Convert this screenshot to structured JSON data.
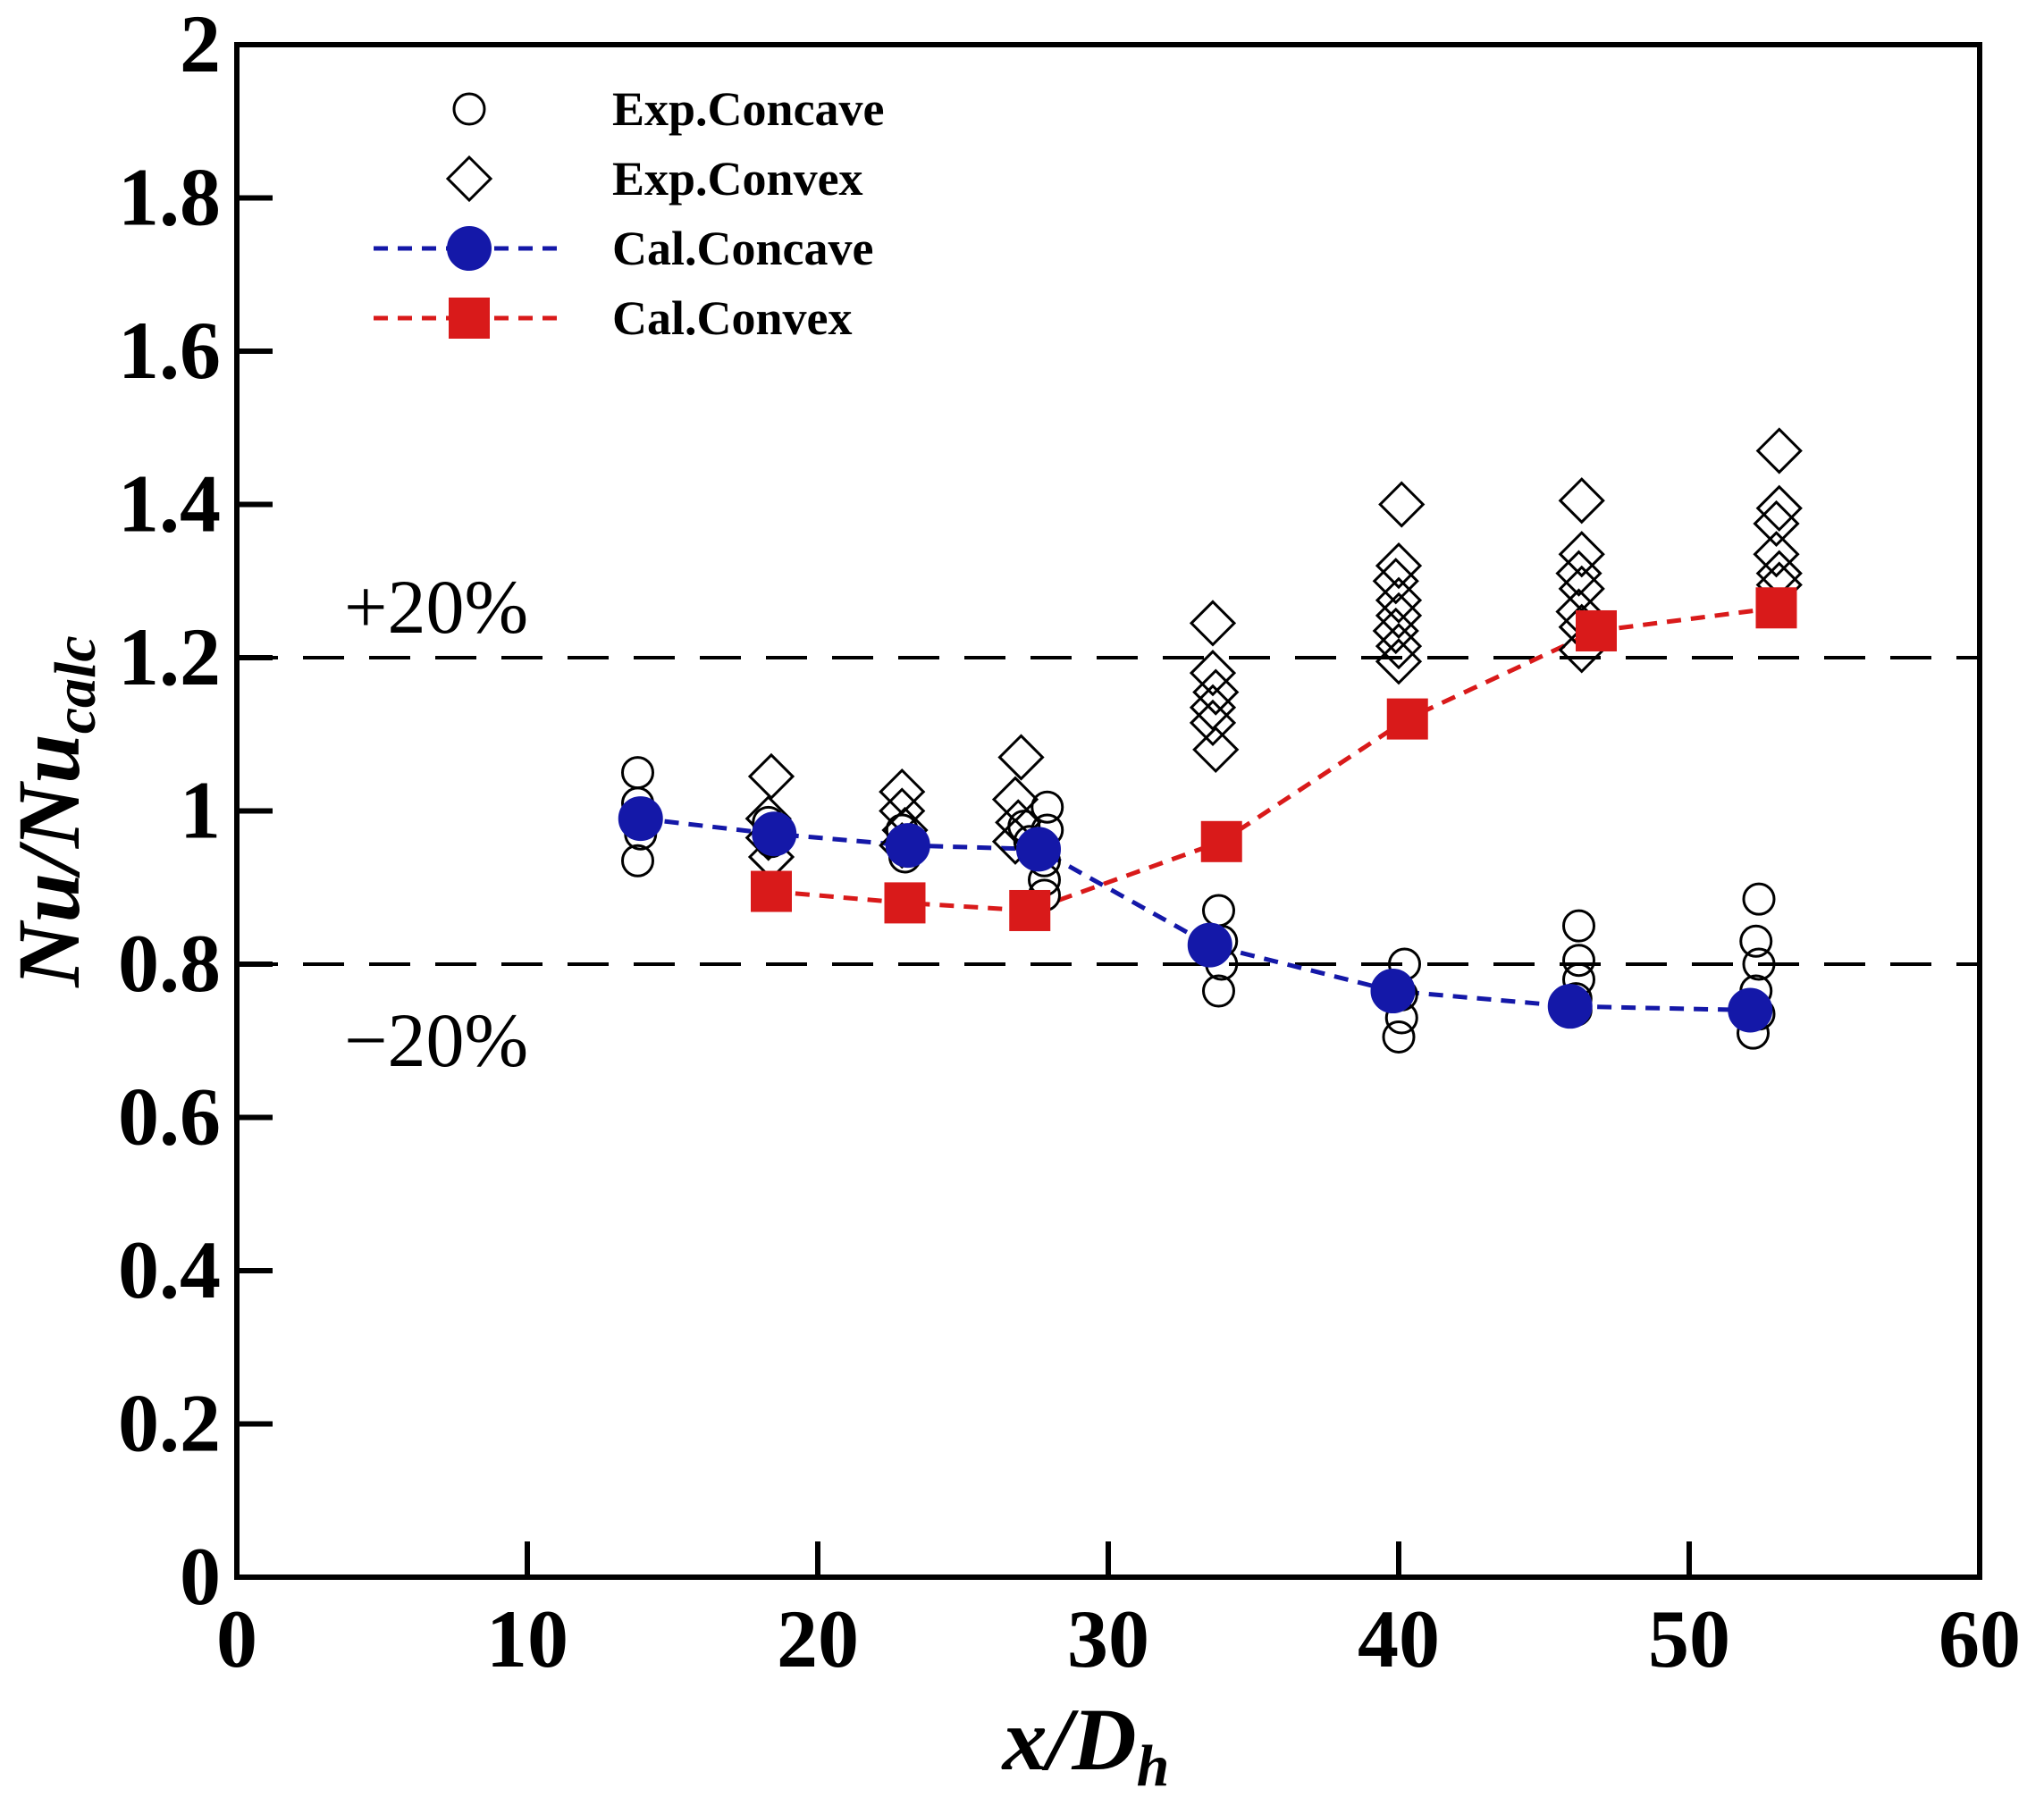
{
  "chart_data": {
    "type": "scatter",
    "title": "",
    "xlabel": {
      "main": "x/D",
      "sub": "h"
    },
    "ylabel": {
      "main": "Nu/Nu",
      "sub": "calc"
    },
    "xlim": [
      0,
      60
    ],
    "ylim": [
      0,
      2
    ],
    "xticks": [
      0,
      10,
      20,
      30,
      40,
      50,
      60
    ],
    "xtick_labels": [
      "0",
      "10",
      "20",
      "30",
      "40",
      "50",
      "60"
    ],
    "yticks": [
      0,
      0.2,
      0.4,
      0.6,
      0.8,
      1.0,
      1.2,
      1.4,
      1.6,
      1.8,
      2.0
    ],
    "ytick_labels": [
      "0",
      "0.2",
      "0.4",
      "0.6",
      "0.8",
      "1",
      "1.2",
      "1.4",
      "1.6",
      "1.8",
      "2"
    ],
    "grid": false,
    "legend_position": "top-left",
    "reference_lines": [
      {
        "y": 1.2,
        "label": "+20%",
        "style": "dashed",
        "color": "#000000"
      },
      {
        "y": 0.8,
        "label": "−20%",
        "style": "dashed",
        "color": "#000000"
      }
    ],
    "series": [
      {
        "name": "Exp.Concave",
        "marker": "circle-open",
        "color": "#000000",
        "points": [
          [
            13.8,
            1.05
          ],
          [
            13.8,
            1.01
          ],
          [
            13.9,
            0.97
          ],
          [
            13.8,
            0.935
          ],
          [
            18.3,
            0.985
          ],
          [
            18.4,
            0.96
          ],
          [
            22.9,
            0.975
          ],
          [
            23.0,
            0.955
          ],
          [
            23.0,
            0.94
          ],
          [
            27.1,
            0.98
          ],
          [
            27.3,
            0.96
          ],
          [
            27.9,
            1.005
          ],
          [
            27.9,
            0.975
          ],
          [
            27.8,
            0.935
          ],
          [
            27.8,
            0.91
          ],
          [
            27.8,
            0.89
          ],
          [
            33.8,
            0.87
          ],
          [
            33.9,
            0.83
          ],
          [
            33.9,
            0.8
          ],
          [
            33.8,
            0.765
          ],
          [
            40.2,
            0.8
          ],
          [
            40.1,
            0.76
          ],
          [
            40.1,
            0.73
          ],
          [
            40.0,
            0.705
          ],
          [
            46.2,
            0.85
          ],
          [
            46.2,
            0.805
          ],
          [
            46.2,
            0.78
          ],
          [
            46.1,
            0.755
          ],
          [
            46.1,
            0.74
          ],
          [
            52.4,
            0.885
          ],
          [
            52.3,
            0.83
          ],
          [
            52.4,
            0.8
          ],
          [
            52.3,
            0.765
          ],
          [
            52.4,
            0.735
          ],
          [
            52.2,
            0.71
          ]
        ]
      },
      {
        "name": "Exp.Convex",
        "marker": "diamond-open",
        "color": "#000000",
        "points": [
          [
            18.4,
            1.045
          ],
          [
            18.3,
            0.99
          ],
          [
            18.3,
            0.965
          ],
          [
            18.4,
            0.94
          ],
          [
            22.9,
            1.025
          ],
          [
            22.9,
            1.0
          ],
          [
            23.0,
            0.975
          ],
          [
            22.9,
            0.955
          ],
          [
            27.0,
            1.07
          ],
          [
            26.8,
            1.015
          ],
          [
            26.9,
            0.985
          ],
          [
            26.8,
            0.96
          ],
          [
            33.6,
            1.245
          ],
          [
            33.6,
            1.18
          ],
          [
            33.7,
            1.155
          ],
          [
            33.6,
            1.135
          ],
          [
            33.6,
            1.115
          ],
          [
            33.7,
            1.08
          ],
          [
            40.1,
            1.4
          ],
          [
            40.0,
            1.32
          ],
          [
            39.9,
            1.3
          ],
          [
            40.0,
            1.275
          ],
          [
            40.0,
            1.255
          ],
          [
            39.9,
            1.235
          ],
          [
            40.0,
            1.215
          ],
          [
            40.0,
            1.195
          ],
          [
            46.3,
            1.405
          ],
          [
            46.3,
            1.335
          ],
          [
            46.2,
            1.31
          ],
          [
            46.3,
            1.29
          ],
          [
            46.2,
            1.26
          ],
          [
            46.3,
            1.24
          ],
          [
            46.3,
            1.21
          ],
          [
            53.1,
            1.47
          ],
          [
            53.1,
            1.395
          ],
          [
            53.0,
            1.375
          ],
          [
            53.0,
            1.335
          ],
          [
            53.1,
            1.31
          ],
          [
            53.1,
            1.295
          ]
        ]
      },
      {
        "name": "Cal.Concave",
        "marker": "circle-filled",
        "line": "dashed",
        "color": "#1418a8",
        "points": [
          [
            13.9,
            0.99
          ],
          [
            18.5,
            0.97
          ],
          [
            23.1,
            0.955
          ],
          [
            27.6,
            0.95
          ],
          [
            33.5,
            0.825
          ],
          [
            39.8,
            0.765
          ],
          [
            45.9,
            0.745
          ],
          [
            52.1,
            0.74
          ]
        ]
      },
      {
        "name": "Cal.Convex",
        "marker": "square-filled",
        "line": "dashed",
        "color": "#d91a1a",
        "points": [
          [
            18.4,
            0.895
          ],
          [
            23.0,
            0.88
          ],
          [
            27.3,
            0.87
          ],
          [
            33.9,
            0.96
          ],
          [
            40.3,
            1.12
          ],
          [
            46.8,
            1.235
          ],
          [
            53.0,
            1.265
          ]
        ]
      }
    ],
    "annotations": [
      "+20%",
      "−20%"
    ]
  }
}
